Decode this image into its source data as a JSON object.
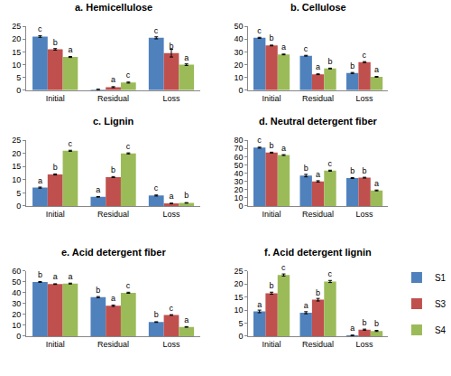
{
  "chart_data": [
    {
      "type": "bar",
      "title": "a. Hemicellulose",
      "categories": [
        "Initial",
        "Residual",
        "Loss"
      ],
      "series": [
        {
          "name": "S1",
          "color": "#4f81bd",
          "values": [
            21,
            0.3,
            20.5
          ],
          "errors": [
            0.3,
            0.1,
            0.4
          ],
          "annotations": [
            "c",
            null,
            "c"
          ]
        },
        {
          "name": "S3",
          "color": "#c0504d",
          "values": [
            16,
            1.2,
            14.5
          ],
          "errors": [
            0.3,
            0.2,
            1.5
          ],
          "annotations": [
            "b",
            "a",
            "b"
          ]
        },
        {
          "name": "S4",
          "color": "#9bbb59",
          "values": [
            13,
            3,
            10
          ],
          "errors": [
            0.2,
            0.2,
            0.3
          ],
          "annotations": [
            "a",
            "c",
            "a"
          ]
        }
      ],
      "ylim": [
        0,
        25
      ],
      "yticks": [
        0,
        5,
        10,
        15,
        20,
        25
      ],
      "grid": false
    },
    {
      "type": "bar",
      "title": "b. Cellulose",
      "categories": [
        "Initial",
        "Residual",
        "Loss"
      ],
      "series": [
        {
          "name": "S1",
          "color": "#4f81bd",
          "values": [
            41,
            27,
            13.5
          ],
          "errors": [
            0.4,
            0.3,
            0.4
          ],
          "annotations": [
            "c",
            "c",
            "b"
          ]
        },
        {
          "name": "S3",
          "color": "#c0504d",
          "values": [
            35,
            12.5,
            22
          ],
          "errors": [
            0.3,
            0.3,
            0.4
          ],
          "annotations": [
            "b",
            "a",
            "c"
          ]
        },
        {
          "name": "S4",
          "color": "#9bbb59",
          "values": [
            28,
            17,
            10.5
          ],
          "errors": [
            0.3,
            0.3,
            0.3
          ],
          "annotations": [
            "a",
            "b",
            "a"
          ]
        }
      ],
      "ylim": [
        0,
        50
      ],
      "yticks": [
        0,
        10,
        20,
        30,
        40,
        50
      ],
      "grid": false
    },
    {
      "type": "bar",
      "title": "c. Lignin",
      "categories": [
        "Initial",
        "Residual",
        "Loss"
      ],
      "series": [
        {
          "name": "S1",
          "color": "#4f81bd",
          "values": [
            7,
            3.5,
            4
          ],
          "errors": [
            0.2,
            0.1,
            0.2
          ],
          "annotations": [
            "a",
            "a",
            "c"
          ]
        },
        {
          "name": "S3",
          "color": "#c0504d",
          "values": [
            12,
            11,
            1
          ],
          "errors": [
            0.2,
            0.2,
            0.1
          ],
          "annotations": [
            "b",
            "b",
            "a"
          ]
        },
        {
          "name": "S4",
          "color": "#9bbb59",
          "values": [
            21,
            20,
            1.2
          ],
          "errors": [
            0.2,
            0.2,
            0.1
          ],
          "annotations": [
            "c",
            "c",
            "b"
          ]
        }
      ],
      "ylim": [
        0,
        25
      ],
      "yticks": [
        0,
        5,
        10,
        15,
        20,
        25
      ],
      "grid": false
    },
    {
      "type": "bar",
      "title": "d. Neutral detergent fiber",
      "categories": [
        "Initial",
        "Residual",
        "Loss"
      ],
      "series": [
        {
          "name": "S1",
          "color": "#4f81bd",
          "values": [
            71,
            37,
            34
          ],
          "errors": [
            0.6,
            1.5,
            0.5
          ],
          "annotations": [
            "c",
            "b",
            "b"
          ]
        },
        {
          "name": "S3",
          "color": "#c0504d",
          "values": [
            65,
            30,
            34.5
          ],
          "errors": [
            0.5,
            0.8,
            0.5
          ],
          "annotations": [
            "b",
            "a",
            "b"
          ]
        },
        {
          "name": "S4",
          "color": "#9bbb59",
          "values": [
            62,
            43,
            19
          ],
          "errors": [
            0.5,
            0.6,
            0.5
          ],
          "annotations": [
            "a",
            "c",
            "a"
          ]
        }
      ],
      "ylim": [
        0,
        80
      ],
      "yticks": [
        0,
        10,
        20,
        30,
        40,
        50,
        60,
        70,
        80
      ],
      "grid": false
    },
    {
      "type": "bar",
      "title": "e. Acid detergent fiber",
      "categories": [
        "Initial",
        "Residual",
        "Loss"
      ],
      "series": [
        {
          "name": "S1",
          "color": "#4f81bd",
          "values": [
            50,
            36,
            13
          ],
          "errors": [
            0.4,
            0.5,
            0.3
          ],
          "annotations": [
            "b",
            "b",
            "b"
          ]
        },
        {
          "name": "S3",
          "color": "#c0504d",
          "values": [
            48,
            28,
            19.5
          ],
          "errors": [
            0.3,
            0.6,
            0.3
          ],
          "annotations": [
            "a",
            "a",
            "c"
          ]
        },
        {
          "name": "S4",
          "color": "#9bbb59",
          "values": [
            48.5,
            40,
            8.5
          ],
          "errors": [
            0.4,
            0.5,
            0.3
          ],
          "annotations": [
            "a",
            "c",
            "a"
          ]
        }
      ],
      "ylim": [
        0,
        60
      ],
      "yticks": [
        0,
        10,
        20,
        30,
        40,
        50,
        60
      ],
      "grid": false
    },
    {
      "type": "bar",
      "title": "f. Acid detergent lignin",
      "categories": [
        "Initial",
        "Residual",
        "Loss"
      ],
      "series": [
        {
          "name": "S1",
          "color": "#4f81bd",
          "values": [
            9.5,
            9,
            0.3
          ],
          "errors": [
            0.5,
            0.4,
            0.1
          ],
          "annotations": [
            "a",
            "a",
            "a"
          ]
        },
        {
          "name": "S3",
          "color": "#c0504d",
          "values": [
            16.5,
            14,
            2.5
          ],
          "errors": [
            0.4,
            0.5,
            0.2
          ],
          "annotations": [
            "b",
            "b",
            "b"
          ]
        },
        {
          "name": "S4",
          "color": "#9bbb59",
          "values": [
            23.5,
            21,
            2
          ],
          "errors": [
            0.4,
            0.4,
            0.2
          ],
          "annotations": [
            "c",
            "c",
            "b"
          ]
        }
      ],
      "ylim": [
        0,
        25
      ],
      "yticks": [
        0,
        5,
        10,
        15,
        20,
        25
      ],
      "grid": false,
      "legend": "right"
    }
  ]
}
